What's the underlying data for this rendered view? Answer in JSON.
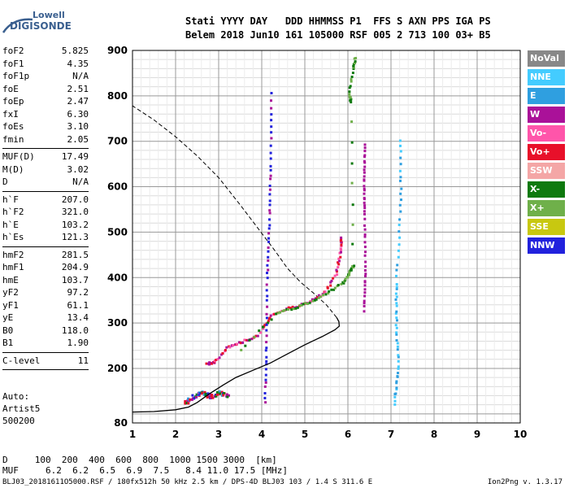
{
  "logo": {
    "line1": "Lowell",
    "line2": "DIGISONDE"
  },
  "header": {
    "line1": "Stati YYYY DAY   DDD HHMMSS P1  FFS S AXN PPS IGA PS",
    "line2": "Belem 2018 Jun10 161 105000 RSF 005 2 713 100 03+ B5"
  },
  "params": [
    {
      "k": "foF2",
      "v": "5.825"
    },
    {
      "k": "foF1",
      "v": "4.35"
    },
    {
      "k": "foF1p",
      "v": "N/A"
    },
    {
      "k": "foE",
      "v": "2.51"
    },
    {
      "k": "foEp",
      "v": "2.47"
    },
    {
      "k": "fxI",
      "v": "6.30"
    },
    {
      "k": "foEs",
      "v": "3.10"
    },
    {
      "k": "fmin",
      "v": "2.05"
    },
    {
      "sep": true
    },
    {
      "k": "MUF(D)",
      "v": "17.49"
    },
    {
      "k": "M(D)",
      "v": "3.02"
    },
    {
      "k": "D",
      "v": "N/A"
    },
    {
      "sep": true
    },
    {
      "k": "h`F",
      "v": "207.0"
    },
    {
      "k": "h`F2",
      "v": "321.0"
    },
    {
      "k": "h`E",
      "v": "103.2"
    },
    {
      "k": "h`Es",
      "v": "121.3"
    },
    {
      "sep": true
    },
    {
      "k": "hmF2",
      "v": "281.5"
    },
    {
      "k": "hmF1",
      "v": "204.9"
    },
    {
      "k": "hmE",
      "v": "103.7"
    },
    {
      "k": "yF2",
      "v": "97.2"
    },
    {
      "k": "yF1",
      "v": "61.1"
    },
    {
      "k": "yE",
      "v": "13.4"
    },
    {
      "k": "B0",
      "v": "118.0"
    },
    {
      "k": "B1",
      "v": "1.90"
    },
    {
      "sep": true
    },
    {
      "k": "C-level",
      "v": "11"
    },
    {
      "sep": true
    }
  ],
  "auto": [
    "Auto:",
    "Artist5",
    "500200"
  ],
  "muf_table": {
    "d_label": "D",
    "muf_label": "MUF",
    "d_values": [
      "100",
      "200",
      "400",
      "600",
      "800",
      "1000",
      "1500",
      "3000",
      "[km]"
    ],
    "muf_values": [
      "6.2",
      "6.2",
      "6.5",
      "6.9",
      "7.5",
      "8.4",
      "11.0",
      "17.5",
      "[MHz]"
    ]
  },
  "footer": "BLJ03_20181611O5000.RSF / 180fx512h 50 kHz 2.5 km / DPS-4D BLJ03 103 / 1.4 S 311.6 E",
  "version": "Ion2Png v. 1.3.17",
  "legend": [
    {
      "label": "NoVal",
      "color": "#888888"
    },
    {
      "label": "NNE",
      "color": "#44ccff"
    },
    {
      "label": "E",
      "color": "#2f9fe0"
    },
    {
      "label": "W",
      "color": "#aa1199"
    },
    {
      "label": "Vo-",
      "color": "#ff55aa"
    },
    {
      "label": "Vo+",
      "color": "#e8102a"
    },
    {
      "label": "SSW",
      "color": "#f4a6a6"
    },
    {
      "label": "X-",
      "color": "#0f7a0f"
    },
    {
      "label": "X+",
      "color": "#6fb04a"
    },
    {
      "label": "SSE",
      "color": "#c8c810"
    },
    {
      "label": "NNW",
      "color": "#2222dd"
    }
  ],
  "chart_data": {
    "type": "scatter",
    "xlim": [
      1,
      10
    ],
    "ylim": [
      80,
      900
    ],
    "x_ticks": [
      1,
      2,
      3,
      4,
      5,
      6,
      7,
      8,
      9,
      10
    ],
    "y_ticks": [
      80,
      200,
      300,
      400,
      500,
      600,
      700,
      800,
      900
    ],
    "grid": true,
    "legend_position": "right",
    "profile_curve": [
      [
        1.0,
        104
      ],
      [
        1.5,
        105
      ],
      [
        2.0,
        109
      ],
      [
        2.3,
        115
      ],
      [
        2.5,
        125
      ],
      [
        2.8,
        145
      ],
      [
        3.1,
        163
      ],
      [
        3.4,
        180
      ],
      [
        3.8,
        196
      ],
      [
        4.2,
        212
      ],
      [
        4.6,
        232
      ],
      [
        5.0,
        252
      ],
      [
        5.4,
        270
      ],
      [
        5.7,
        285
      ],
      [
        5.8,
        293
      ],
      [
        5.79,
        303
      ],
      [
        5.74,
        312
      ]
    ],
    "dashed_curve": [
      [
        5.74,
        312
      ],
      [
        5.5,
        340
      ],
      [
        5.2,
        366
      ],
      [
        4.9,
        390
      ],
      [
        4.6,
        420
      ],
      [
        4.3,
        460
      ],
      [
        3.9,
        510
      ],
      [
        3.5,
        560
      ],
      [
        3.0,
        620
      ],
      [
        2.5,
        668
      ],
      [
        2.0,
        710
      ],
      [
        1.5,
        747
      ],
      [
        1.0,
        778
      ]
    ],
    "o_trace": [
      [
        2.7,
        212
      ],
      [
        2.9,
        218
      ],
      [
        3.2,
        250
      ],
      [
        3.5,
        260
      ],
      [
        3.9,
        275
      ],
      [
        4.2,
        320
      ],
      [
        4.6,
        335
      ],
      [
        5.0,
        345
      ],
      [
        5.4,
        365
      ],
      [
        5.7,
        410
      ],
      [
        5.8,
        460
      ],
      [
        5.83,
        495
      ]
    ],
    "x_trace": [
      [
        3.5,
        245
      ],
      [
        4.3,
        322
      ],
      [
        4.7,
        335
      ],
      [
        5.1,
        348
      ],
      [
        5.5,
        370
      ],
      [
        5.85,
        390
      ],
      [
        6.0,
        410
      ],
      [
        6.1,
        430
      ],
      [
        6.05,
        790
      ],
      [
        6.0,
        805
      ],
      [
        6.1,
        860
      ],
      [
        6.15,
        890
      ]
    ],
    "w_trace": [
      [
        6.35,
        330
      ],
      [
        6.38,
        420
      ],
      [
        6.36,
        540
      ],
      [
        6.35,
        620
      ],
      [
        6.37,
        700
      ]
    ],
    "es_cluster": [
      [
        2.2,
        125
      ],
      [
        2.4,
        140
      ],
      [
        2.6,
        150
      ],
      [
        2.8,
        140
      ],
      [
        3.0,
        148
      ],
      [
        3.2,
        142
      ]
    ],
    "e_trace": [
      [
        7.05,
        125
      ],
      [
        7.15,
        200
      ],
      [
        7.1,
        300
      ],
      [
        7.1,
        390
      ],
      [
        7.2,
        560
      ],
      [
        7.2,
        720
      ]
    ],
    "nnw_trace": [
      [
        4.05,
        130
      ],
      [
        4.08,
        250
      ],
      [
        4.1,
        400
      ],
      [
        4.15,
        520
      ],
      [
        4.18,
        650
      ],
      [
        4.2,
        820
      ]
    ]
  }
}
